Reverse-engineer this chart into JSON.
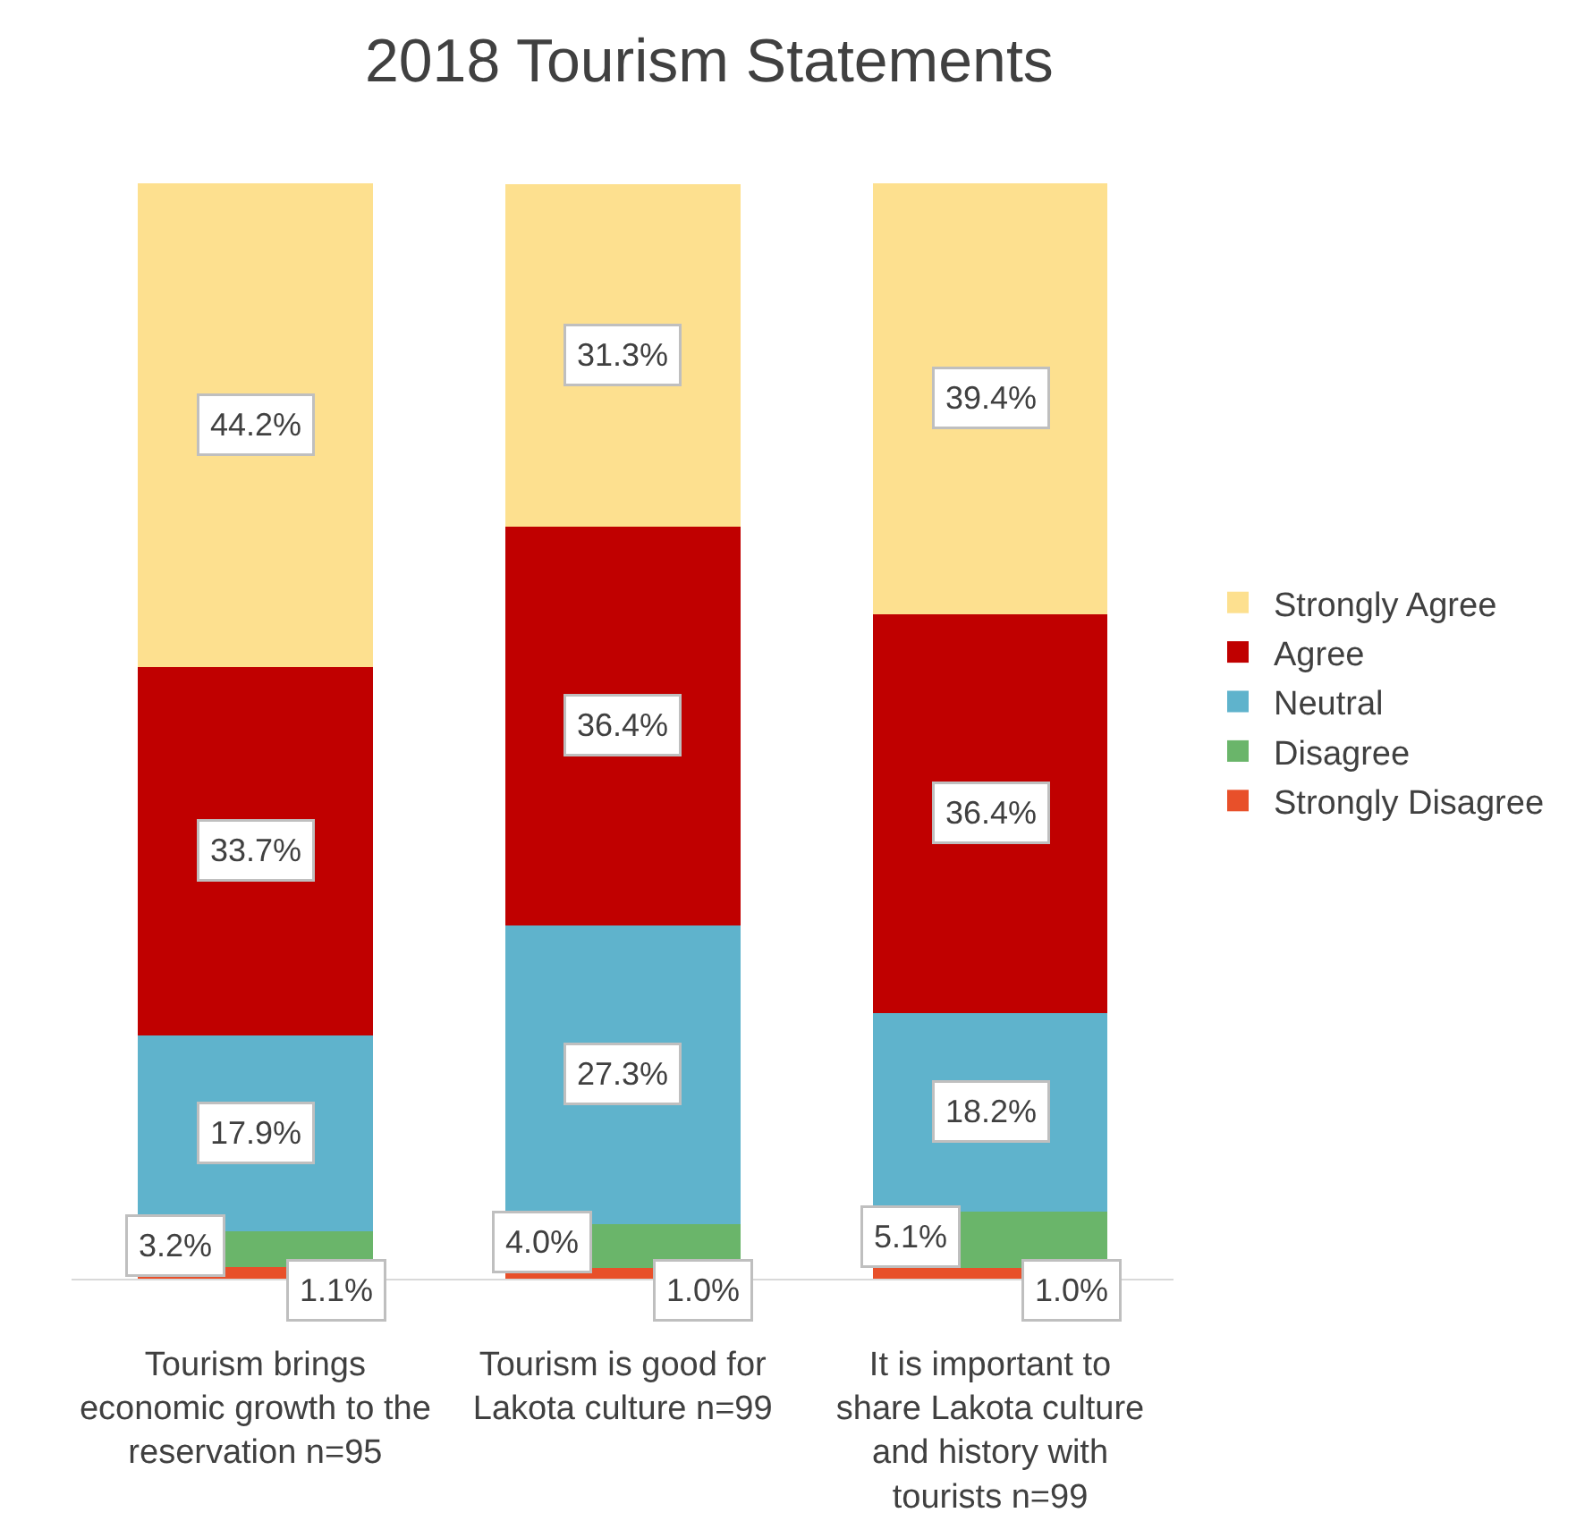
{
  "chart_data": {
    "type": "bar",
    "title": "2018 Tourism Statements",
    "stacked": true,
    "legend": "right",
    "tick_labels": "x",
    "categories": [
      "Tourism brings economic growth to the reservation n=95",
      "Tourism is good for Lakota culture n=99",
      "It is important to share Lakota culture and history with tourists n=99"
    ],
    "series": [
      {
        "name": "Strongly Disagree",
        "color": "#e8502a",
        "values": [
          1.1,
          1.0,
          1.0
        ],
        "value_labels": [
          "1.1%",
          "1.0%",
          "1.0%"
        ]
      },
      {
        "name": "Disagree",
        "color": "#6ab56a",
        "values": [
          3.2,
          4.0,
          5.1
        ],
        "value_labels": [
          "3.2%",
          "4.0%",
          "5.1%"
        ]
      },
      {
        "name": "Neutral",
        "color": "#5fb3cc",
        "values": [
          17.9,
          27.3,
          18.2
        ],
        "value_labels": [
          "17.9%",
          "27.3%",
          "18.2%"
        ]
      },
      {
        "name": "Agree",
        "color": "#c00000",
        "values": [
          33.7,
          36.4,
          36.4
        ],
        "value_labels": [
          "33.7%",
          "36.4%",
          "36.4%"
        ]
      },
      {
        "name": "Strongly Agree",
        "color": "#fde08f",
        "values": [
          44.2,
          31.3,
          39.4
        ],
        "value_labels": [
          "44.2%",
          "31.3%",
          "39.4%"
        ]
      }
    ]
  }
}
